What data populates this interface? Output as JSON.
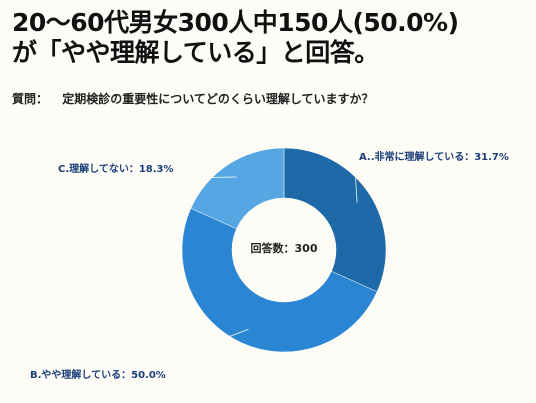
{
  "headline": {
    "line1": "20〜60代男女300人中150人(50.0%)",
    "line2": "が「やや理解している」と回答。"
  },
  "question": {
    "prefix": "質問：",
    "text": "定期検診の重要性についてどのくらい理解していますか？"
  },
  "chart_data": {
    "type": "pie",
    "donut": true,
    "center_label": "回答数：300",
    "slices": [
      {
        "label": "A..非常に理解している：31.7%",
        "value": 31.7,
        "color": "#1e6aa8"
      },
      {
        "label": "B.やや理解している：50.0%",
        "value": 50.0,
        "color": "#2a86d2"
      },
      {
        "label": "C.理解してない：18.3%",
        "value": 18.3,
        "color": "#56a6e3"
      }
    ]
  }
}
